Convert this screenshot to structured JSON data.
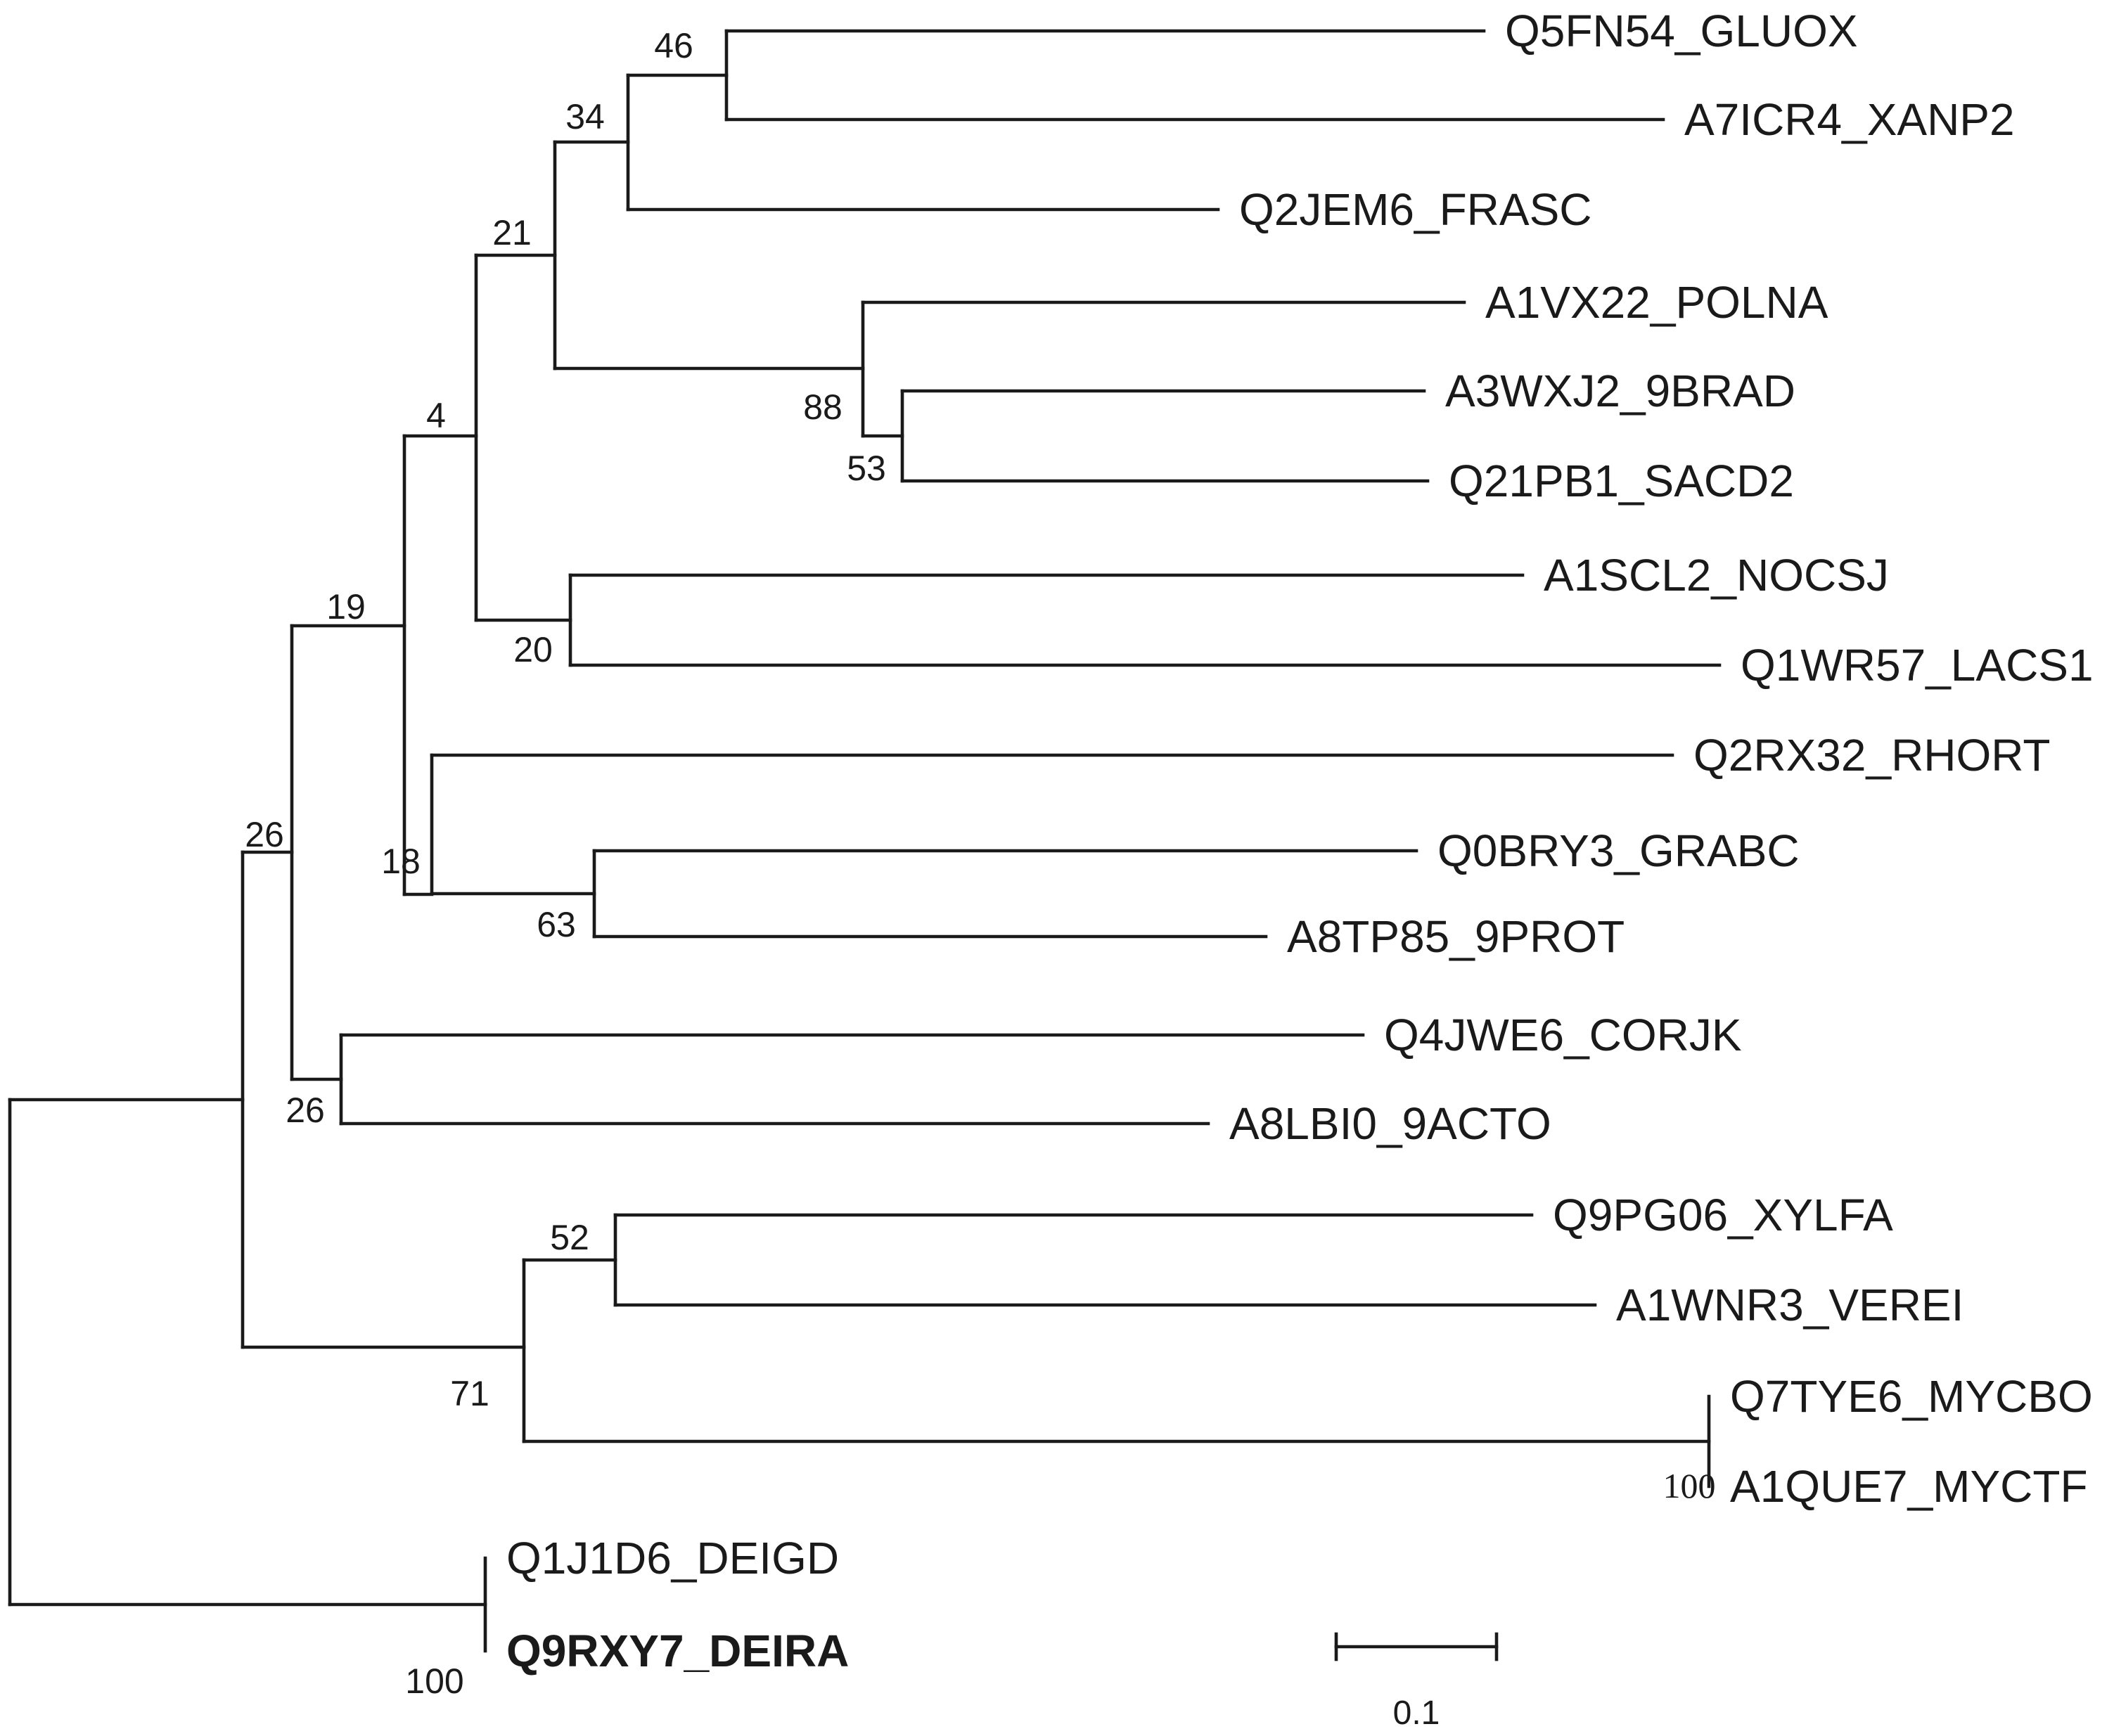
{
  "tree": {
    "leaves": [
      {
        "id": "Q5FN54_GLUOX",
        "label": "Q5FN54_GLUOX"
      },
      {
        "id": "A7ICR4_XANP2",
        "label": "A7ICR4_XANP2"
      },
      {
        "id": "Q2JEM6_FRASC",
        "label": "Q2JEM6_FRASC"
      },
      {
        "id": "A1VX22_POLNA",
        "label": "A1VX22_POLNA"
      },
      {
        "id": "A3WXJ2_9BRAD",
        "label": "A3WXJ2_9BRAD"
      },
      {
        "id": "Q21PB1_SACD2",
        "label": "Q21PB1_SACD2"
      },
      {
        "id": "A1SCL2_NOCSJ",
        "label": "A1SCL2_NOCSJ"
      },
      {
        "id": "Q1WR57_LACS1",
        "label": "Q1WR57_LACS1"
      },
      {
        "id": "Q2RX32_RHORT",
        "label": "Q2RX32_RHORT"
      },
      {
        "id": "Q0BRY3_GRABC",
        "label": "Q0BRY3_GRABC"
      },
      {
        "id": "A8TP85_9PROT",
        "label": "A8TP85_9PROT"
      },
      {
        "id": "Q4JWE6_CORJK",
        "label": "Q4JWE6_CORJK"
      },
      {
        "id": "A8LBI0_9ACTO",
        "label": "A8LBI0_9ACTO"
      },
      {
        "id": "Q9PG06_XYLFA",
        "label": "Q9PG06_XYLFA"
      },
      {
        "id": "A1WNR3_VEREI",
        "label": "A1WNR3_VEREI"
      },
      {
        "id": "Q7TYE6_MYCBO",
        "label": "Q7TYE6_MYCBO"
      },
      {
        "id": "A1QUE7_MYCTF",
        "label": "A1QUE7_MYCTF"
      },
      {
        "id": "Q1J1D6_DEIGD",
        "label": "Q1J1D6_DEIGD"
      },
      {
        "id": "Q9RXY7_DEIRA",
        "label": "Q9RXY7_DEIRA",
        "highlighted": true
      }
    ],
    "support_values": [
      "46",
      "34",
      "21",
      "88",
      "53",
      "4",
      "20",
      "19",
      "18",
      "63",
      "26",
      "26",
      "52",
      "71",
      "100",
      "100"
    ],
    "scale_bar": {
      "value": 0.1,
      "label": "0.1"
    }
  }
}
